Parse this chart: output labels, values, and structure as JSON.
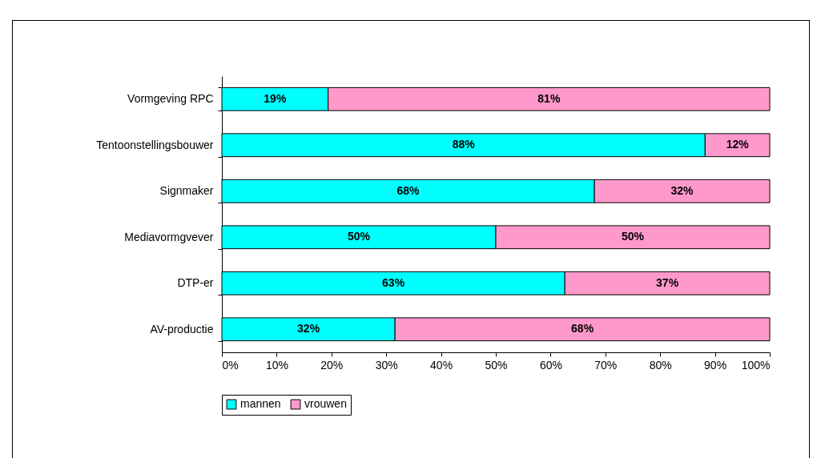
{
  "chart_data": {
    "type": "bar",
    "orientation": "horizontal",
    "stacked": true,
    "categories": [
      "Vormgeving RPC",
      "Tentoonstellingsbouwer",
      "Signmaker",
      "Mediavormgvever",
      "DTP-er",
      "AV-productie"
    ],
    "series": [
      {
        "name": "mannen",
        "color": "#00ffff",
        "values": [
          19.4,
          88.2,
          68,
          50,
          62.6,
          31.6
        ],
        "value_labels": [
          "19%",
          "88%",
          "68%",
          "50%",
          "63%",
          "32%"
        ]
      },
      {
        "name": "vrouwen",
        "color": "#ff99cc",
        "values": [
          80.6,
          11.8,
          32,
          50,
          37.4,
          68.4
        ],
        "value_labels": [
          "81%",
          "12%",
          "32%",
          "50%",
          "37%",
          "68%"
        ]
      }
    ],
    "xlim": [
      0,
      100
    ],
    "xticks": [
      {
        "value": 0,
        "label": "0%"
      },
      {
        "value": 10,
        "label": "10%"
      },
      {
        "value": 20,
        "label": "20%"
      },
      {
        "value": 30,
        "label": "30%"
      },
      {
        "value": 40,
        "label": "40%"
      },
      {
        "value": 50,
        "label": "50%"
      },
      {
        "value": 60,
        "label": "60%"
      },
      {
        "value": 70,
        "label": "70%"
      },
      {
        "value": 80,
        "label": "80%"
      },
      {
        "value": 90,
        "label": "90%"
      },
      {
        "value": 100,
        "label": "100%"
      }
    ],
    "grid": false,
    "legend": "bottom"
  }
}
